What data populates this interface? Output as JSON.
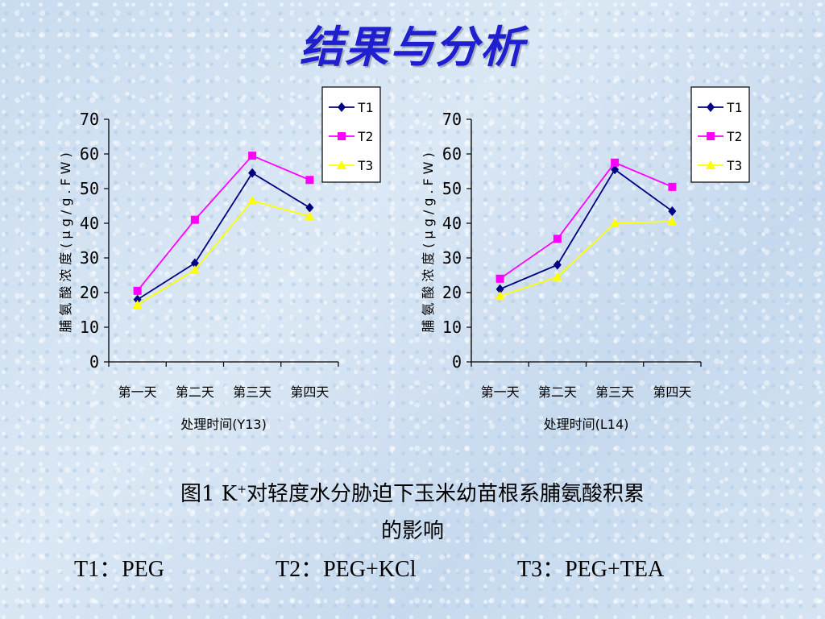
{
  "page_title": "结果与分析",
  "caption": {
    "line1_prefix": "图1  K",
    "line1_sup": "+",
    "line1_suffix": "对轻度水分胁迫下玉米幼苗根系脯氨酸积累",
    "line2": "的影响"
  },
  "treatments": [
    {
      "code": "T1",
      "text": "T1：PEG"
    },
    {
      "code": "T2",
      "text": "T2：PEG+KCl"
    },
    {
      "code": "T3",
      "text": "T3：PEG+TEA"
    }
  ],
  "chart_data": [
    {
      "type": "line",
      "categories": [
        "第一天",
        "第二天",
        "第三天",
        "第四天"
      ],
      "ylabel": "脯氨酸浓度(μg/g.FW)",
      "xlabel": "处理时间(Y13)",
      "ylim": [
        0,
        70
      ],
      "yticks": [
        0,
        10,
        20,
        30,
        40,
        50,
        60,
        70
      ],
      "legend_position": "top-right",
      "grid": false,
      "series": [
        {
          "name": "T1",
          "color": "#000080",
          "marker": "diamond",
          "values": [
            18,
            28.5,
            54.5,
            44.5
          ]
        },
        {
          "name": "T2",
          "color": "#ff00ff",
          "marker": "square",
          "values": [
            20.5,
            41,
            59.5,
            52.5
          ]
        },
        {
          "name": "T3",
          "color": "#ffff00",
          "marker": "triangle",
          "values": [
            16.5,
            26.5,
            46.5,
            42
          ]
        }
      ]
    },
    {
      "type": "line",
      "categories": [
        "第一天",
        "第二天",
        "第三天",
        "第四天"
      ],
      "ylabel": "脯氨酸浓度(μg/g.FW)",
      "xlabel": "处理时间(L14)",
      "ylim": [
        0,
        70
      ],
      "yticks": [
        0,
        10,
        20,
        30,
        40,
        50,
        60,
        70
      ],
      "legend_position": "top-right",
      "grid": false,
      "series": [
        {
          "name": "T1",
          "color": "#000080",
          "marker": "diamond",
          "values": [
            21,
            28,
            55.5,
            43.5
          ]
        },
        {
          "name": "T2",
          "color": "#ff00ff",
          "marker": "square",
          "values": [
            24,
            35.5,
            57.5,
            50.5
          ]
        },
        {
          "name": "T3",
          "color": "#ffff00",
          "marker": "triangle",
          "values": [
            19,
            24.5,
            40,
            40.5
          ]
        }
      ]
    }
  ]
}
